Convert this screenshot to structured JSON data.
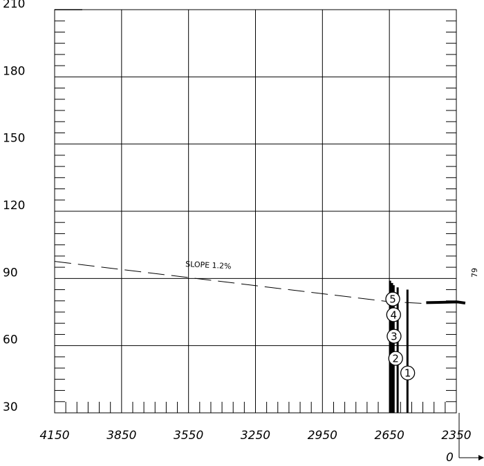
{
  "chart_data": {
    "type": "line",
    "x_axis": {
      "ticks": [
        4150,
        3850,
        3550,
        3250,
        2950,
        2650,
        2350
      ],
      "range": [
        4150,
        2350
      ],
      "reversed": true,
      "origin_label": "0"
    },
    "y_axis": {
      "ticks": [
        30,
        60,
        90,
        120,
        150,
        180,
        210
      ],
      "range": [
        30,
        210
      ]
    },
    "grid": true,
    "slope_line": {
      "label": "SLOPE 1.2%",
      "style": "dashed",
      "points": [
        [
          4150,
          97.6
        ],
        [
          3550,
          90.4
        ],
        [
          2650,
          79.6
        ],
        [
          2485,
          78.8
        ]
      ]
    },
    "surface_line": {
      "style": "solid-thick",
      "points": [
        [
          2485,
          79.2
        ],
        [
          2345,
          79.5
        ],
        [
          2310,
          79.0
        ]
      ],
      "end_label": "79"
    },
    "minor_vertical_line": {
      "x": 3250,
      "y_from": 90,
      "y_to": 120
    },
    "vertical_bars": [
      {
        "x": 2647,
        "y_from": 30,
        "y_to": 89
      },
      {
        "x": 2638,
        "y_from": 30,
        "y_to": 88
      },
      {
        "x": 2631,
        "y_from": 30,
        "y_to": 87
      },
      {
        "x": 2613,
        "y_from": 30,
        "y_to": 86
      },
      {
        "x": 2569,
        "y_from": 30,
        "y_to": 85
      }
    ],
    "markers": [
      {
        "label": "1",
        "x": 2568,
        "y": 47.8
      },
      {
        "label": "2",
        "x": 2622,
        "y": 54.3
      },
      {
        "label": "3",
        "x": 2629,
        "y": 64.2
      },
      {
        "label": "4",
        "x": 2631,
        "y": 73.8
      },
      {
        "label": "5",
        "x": 2635,
        "y": 80.8
      }
    ]
  }
}
